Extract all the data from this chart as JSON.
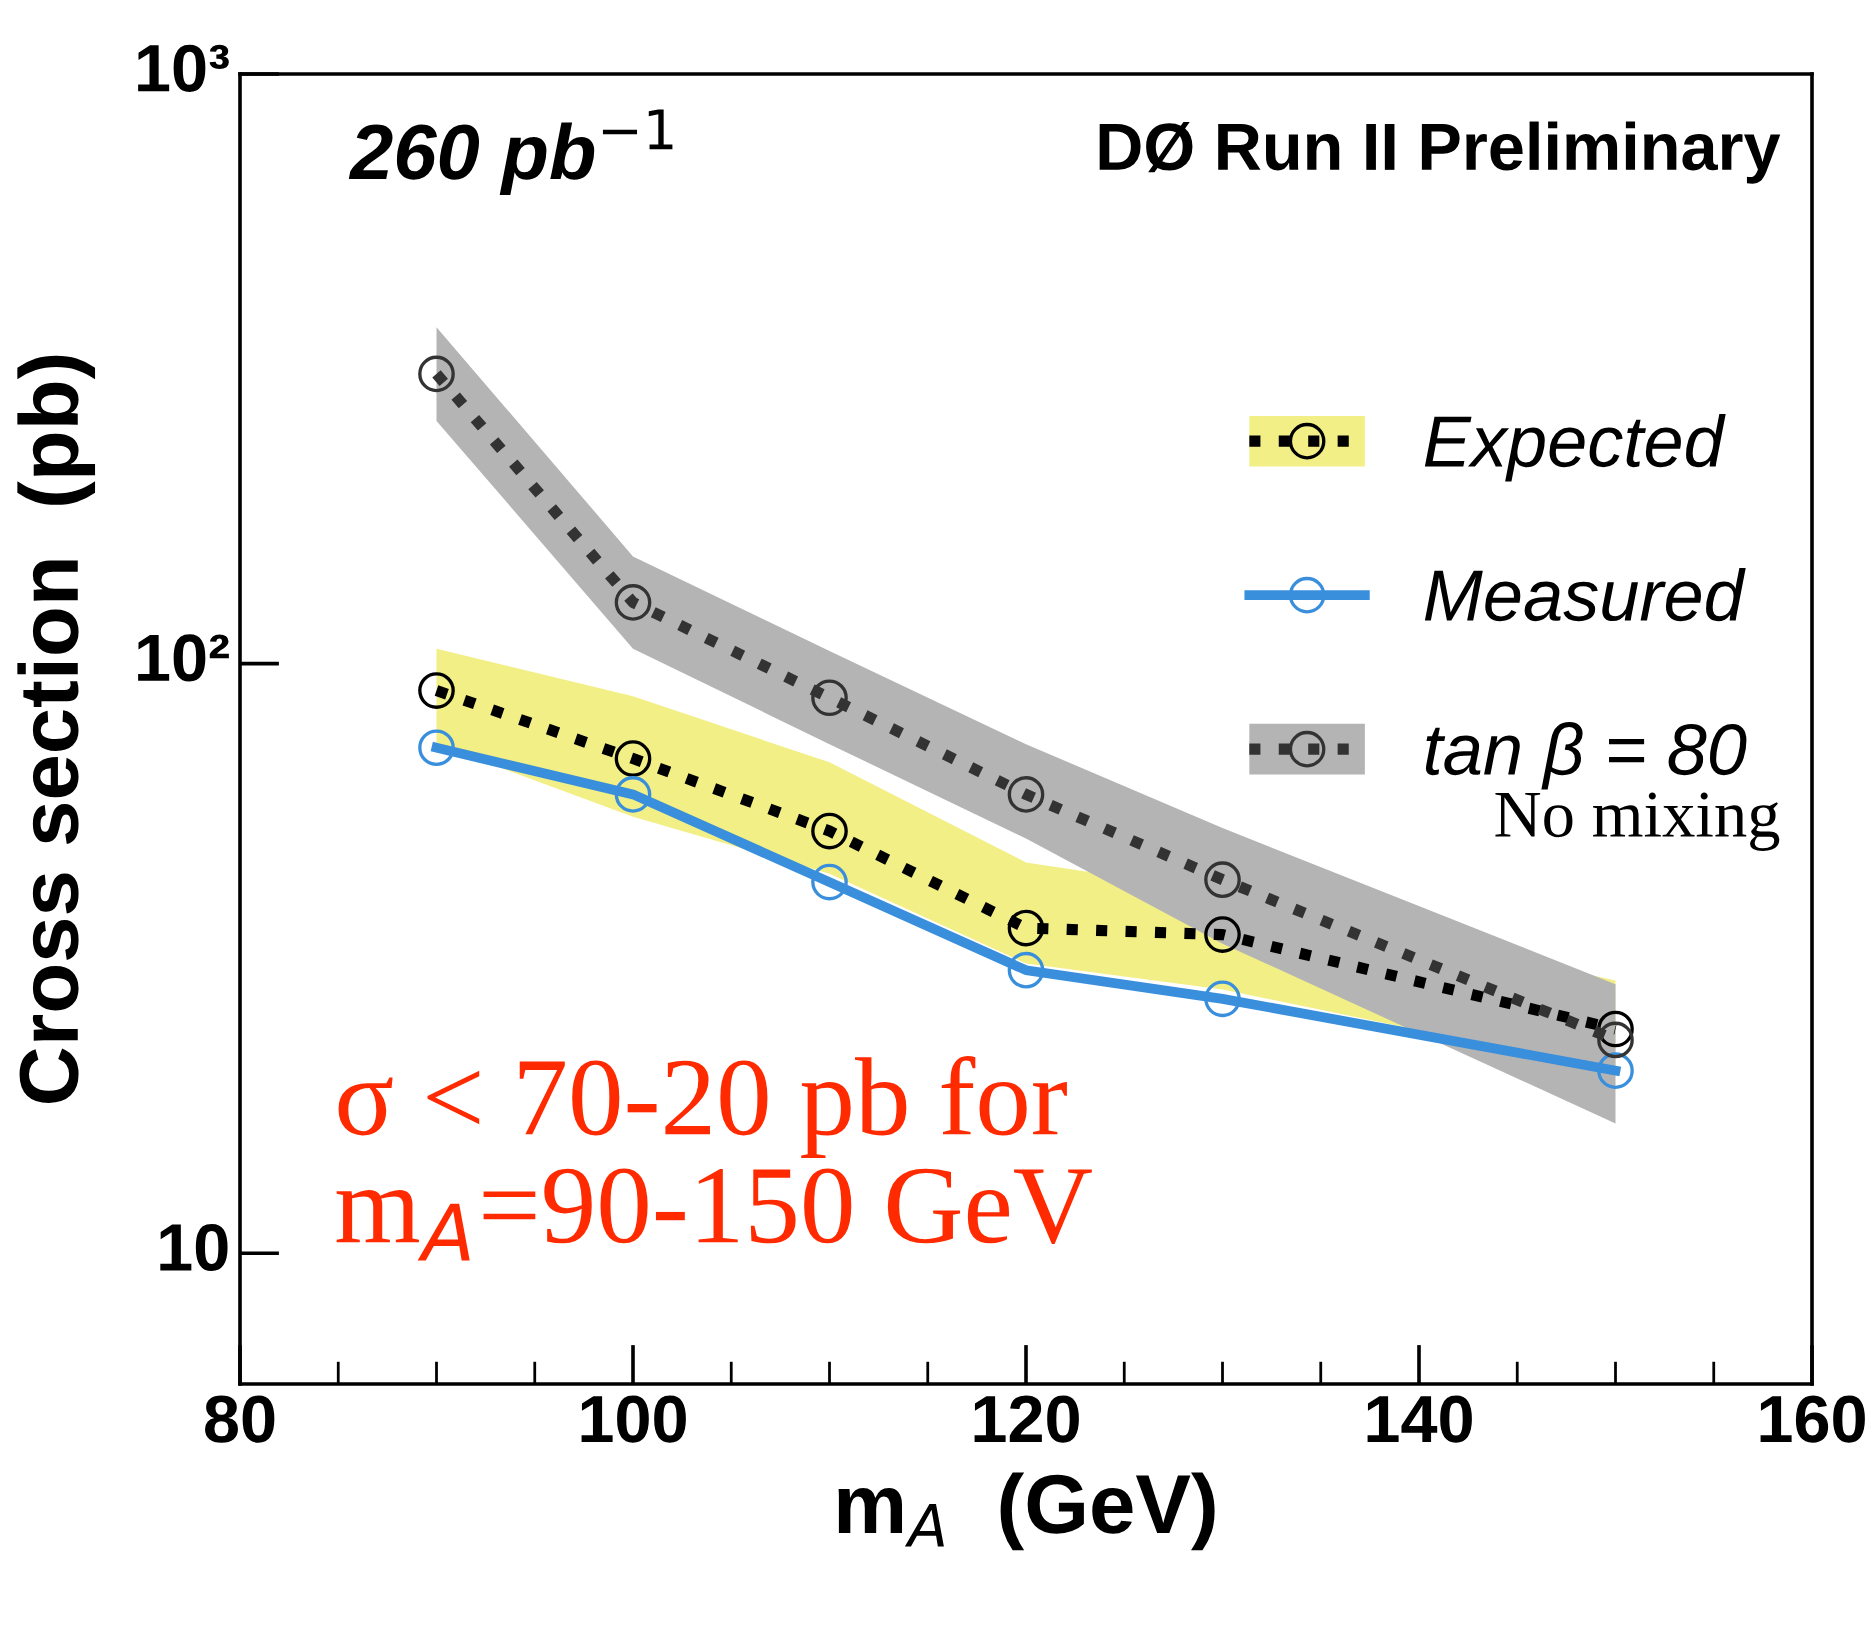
{
  "chart_data": {
    "type": "line",
    "xlabel": "m$_{A}$  (GeV)",
    "ylabel": "Cross section  (pb)",
    "x": [
      90,
      100,
      110,
      120,
      130,
      150
    ],
    "series": [
      {
        "name": "Expected",
        "color": "#000000",
        "line_style": "dotted",
        "values": [
          90,
          69,
          52,
          35.6,
          34.7,
          24
        ],
        "lower": [
          73,
          55,
          44,
          31,
          28,
          20.4
        ],
        "upper": [
          106,
          88,
          68,
          46,
          41,
          29
        ]
      },
      {
        "name": "Measured",
        "color": "#3a8fdc",
        "line_style": "solid",
        "values": [
          72,
          60,
          42.6,
          30.2,
          27,
          20.4
        ]
      },
      {
        "name": "tan β = 80",
        "color": "#333333",
        "line_style": "dotted",
        "values": [
          310,
          127,
          87.5,
          60,
          43,
          23
        ],
        "lower": [
          258,
          106,
          73,
          50.5,
          33.5,
          16.6
        ],
        "upper": [
          372,
          152,
          105,
          73,
          52.6,
          28.6
        ]
      }
    ],
    "marker": "circle",
    "log": "y",
    "grid": false,
    "legend": "top right",
    "xlim": [
      80,
      160
    ],
    "xticks": [
      80,
      100,
      120,
      140,
      160
    ],
    "ylim": [
      6,
      1000
    ],
    "yticks": [
      {
        "value": 10,
        "label": "10"
      },
      {
        "value": 100,
        "label": "10²"
      },
      {
        "value": 1000,
        "label": "10³"
      }
    ],
    "annotations": [
      "260 pb$^{−1}$",
      "DØ Run II Preliminary",
      "No mixing",
      "σ < 70-20 pb for\nm$_{A}$=90-150 GeV"
    ]
  }
}
